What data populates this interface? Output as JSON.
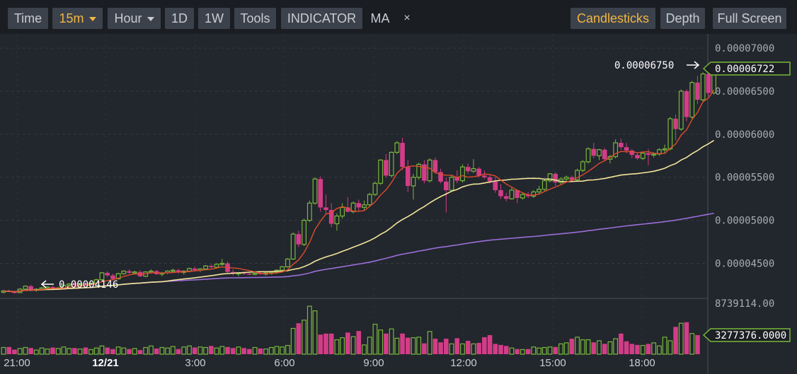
{
  "toolbar": {
    "time": "Time",
    "interval": "15m",
    "hour": "Hour",
    "d1": "1D",
    "w1": "1W",
    "tools": "Tools",
    "indicator": "INDICATOR",
    "ma": "MA",
    "close": "×",
    "candlesticks": "Candlesticks",
    "depth": "Depth",
    "fullscreen": "Full Screen"
  },
  "colors": {
    "up": "#78b83a",
    "down": "#d23d87",
    "ma_short": "#e04b2c",
    "ma_mid": "#f3e59a",
    "ma_long": "#9a6fd8",
    "accent": "#f0b542"
  },
  "chart_data": {
    "type": "candlestick",
    "price_ticks": [
      "0.00007000",
      "0.00006500",
      "0.00006000",
      "0.00005500",
      "0.00005000",
      "0.00004500"
    ],
    "price_range": [
      4.11e-05,
      7.05e-05
    ],
    "volume_ticks": [
      "8739114.00"
    ],
    "volume_range": [
      0,
      8739114
    ],
    "time_ticks": [
      "21:00",
      "12/21",
      "3:00",
      "6:00",
      "9:00",
      "12:00",
      "15:00",
      "18:00"
    ],
    "annotations": {
      "high": "0.00006750",
      "low": "0.00004146",
      "last_price": "0.00006722",
      "last_volume": "3277376.0000"
    },
    "candles": [
      [
        4165,
        4190,
        4150,
        4180
      ],
      [
        4180,
        4195,
        4165,
        4170
      ],
      [
        4170,
        4180,
        4146,
        4160
      ],
      [
        4160,
        4215,
        4155,
        4200
      ],
      [
        4200,
        4245,
        4190,
        4235
      ],
      [
        4235,
        4250,
        4180,
        4190
      ],
      [
        4190,
        4210,
        4170,
        4200
      ],
      [
        4200,
        4225,
        4190,
        4215
      ],
      [
        4215,
        4235,
        4200,
        4225
      ],
      [
        4225,
        4240,
        4195,
        4205
      ],
      [
        4205,
        4225,
        4190,
        4215
      ],
      [
        4215,
        4255,
        4205,
        4245
      ],
      [
        4245,
        4270,
        4230,
        4260
      ],
      [
        4260,
        4280,
        4240,
        4250
      ],
      [
        4250,
        4270,
        4235,
        4265
      ],
      [
        4265,
        4285,
        4245,
        4255
      ],
      [
        4255,
        4275,
        4240,
        4270
      ],
      [
        4270,
        4320,
        4260,
        4310
      ],
      [
        4310,
        4400,
        4300,
        4390
      ],
      [
        4390,
        4410,
        4340,
        4360
      ],
      [
        4360,
        4380,
        4300,
        4320
      ],
      [
        4320,
        4390,
        4310,
        4380
      ],
      [
        4380,
        4420,
        4370,
        4410
      ],
      [
        4410,
        4430,
        4380,
        4390
      ],
      [
        4390,
        4415,
        4370,
        4400
      ],
      [
        4400,
        4420,
        4340,
        4350
      ],
      [
        4350,
        4410,
        4340,
        4400
      ],
      [
        4400,
        4430,
        4380,
        4410
      ],
      [
        4410,
        4425,
        4365,
        4375
      ],
      [
        4375,
        4400,
        4350,
        4390
      ],
      [
        4390,
        4420,
        4375,
        4410
      ],
      [
        4410,
        4440,
        4390,
        4420
      ],
      [
        4420,
        4440,
        4380,
        4395
      ],
      [
        4395,
        4420,
        4370,
        4410
      ],
      [
        4410,
        4450,
        4395,
        4440
      ],
      [
        4440,
        4460,
        4410,
        4420
      ],
      [
        4420,
        4445,
        4400,
        4435
      ],
      [
        4435,
        4480,
        4420,
        4470
      ],
      [
        4470,
        4490,
        4440,
        4455
      ],
      [
        4455,
        4500,
        4440,
        4490
      ],
      [
        4490,
        4550,
        4470,
        4500
      ],
      [
        4500,
        4520,
        4380,
        4400
      ],
      [
        4400,
        4430,
        4360,
        4380
      ],
      [
        4380,
        4400,
        4350,
        4390
      ],
      [
        4390,
        4405,
        4370,
        4380
      ],
      [
        4380,
        4400,
        4365,
        4375
      ],
      [
        4375,
        4395,
        4360,
        4385
      ],
      [
        4385,
        4400,
        4370,
        4375
      ],
      [
        4375,
        4395,
        4360,
        4390
      ],
      [
        4390,
        4410,
        4370,
        4395
      ],
      [
        4395,
        4430,
        4380,
        4420
      ],
      [
        4420,
        4470,
        4410,
        4460
      ],
      [
        4460,
        4560,
        4450,
        4550
      ],
      [
        4550,
        4860,
        4540,
        4840
      ],
      [
        4840,
        4880,
        4690,
        4720
      ],
      [
        4720,
        5020,
        4700,
        5000
      ],
      [
        5000,
        5230,
        4980,
        5200
      ],
      [
        5200,
        5500,
        5180,
        5480
      ],
      [
        5480,
        5510,
        5100,
        5150
      ],
      [
        5150,
        5300,
        5080,
        5120
      ],
      [
        5120,
        5200,
        4920,
        4960
      ],
      [
        4960,
        5080,
        4880,
        5050
      ],
      [
        5050,
        5200,
        5020,
        5150
      ],
      [
        5150,
        5270,
        5090,
        5100
      ],
      [
        5100,
        5220,
        5080,
        5200
      ],
      [
        5200,
        5240,
        5110,
        5150
      ],
      [
        5150,
        5230,
        5120,
        5180
      ],
      [
        5180,
        5320,
        5160,
        5300
      ],
      [
        5300,
        5450,
        5280,
        5430
      ],
      [
        5430,
        5710,
        5410,
        5700
      ],
      [
        5700,
        5770,
        5500,
        5520
      ],
      [
        5520,
        5800,
        5500,
        5790
      ],
      [
        5790,
        5920,
        5770,
        5900
      ],
      [
        5900,
        5960,
        5580,
        5620
      ],
      [
        5620,
        5700,
        5330,
        5400
      ],
      [
        5400,
        5540,
        5240,
        5500
      ],
      [
        5500,
        5670,
        5470,
        5650
      ],
      [
        5650,
        5700,
        5430,
        5460
      ],
      [
        5460,
        5720,
        5440,
        5700
      ],
      [
        5700,
        5730,
        5540,
        5560
      ],
      [
        5560,
        5600,
        5430,
        5450
      ],
      [
        5450,
        5500,
        5090,
        5350
      ],
      [
        5350,
        5520,
        5330,
        5500
      ],
      [
        5500,
        5580,
        5430,
        5460
      ],
      [
        5460,
        5650,
        5440,
        5620
      ],
      [
        5620,
        5660,
        5540,
        5570
      ],
      [
        5570,
        5710,
        5550,
        5600
      ],
      [
        5600,
        5620,
        5500,
        5520
      ],
      [
        5520,
        5580,
        5480,
        5500
      ],
      [
        5500,
        5540,
        5430,
        5450
      ],
      [
        5450,
        5500,
        5320,
        5350
      ],
      [
        5350,
        5420,
        5250,
        5280
      ],
      [
        5280,
        5320,
        5220,
        5250
      ],
      [
        5250,
        5380,
        5240,
        5350
      ],
      [
        5350,
        5360,
        5200,
        5260
      ],
      [
        5260,
        5320,
        5240,
        5300
      ],
      [
        5300,
        5330,
        5260,
        5280
      ],
      [
        5280,
        5350,
        5260,
        5330
      ],
      [
        5330,
        5400,
        5310,
        5360
      ],
      [
        5360,
        5480,
        5340,
        5460
      ],
      [
        5460,
        5550,
        5440,
        5540
      ],
      [
        5540,
        5560,
        5400,
        5440
      ],
      [
        5440,
        5500,
        5420,
        5480
      ],
      [
        5480,
        5520,
        5440,
        5500
      ],
      [
        5500,
        5520,
        5450,
        5470
      ],
      [
        5470,
        5600,
        5460,
        5580
      ],
      [
        5580,
        5700,
        5560,
        5680
      ],
      [
        5680,
        5850,
        5660,
        5830
      ],
      [
        5830,
        5900,
        5720,
        5750
      ],
      [
        5750,
        5830,
        5700,
        5820
      ],
      [
        5820,
        5840,
        5690,
        5710
      ],
      [
        5710,
        5760,
        5660,
        5740
      ],
      [
        5740,
        5940,
        5720,
        5900
      ],
      [
        5900,
        5950,
        5820,
        5850
      ],
      [
        5850,
        5900,
        5780,
        5810
      ],
      [
        5810,
        5830,
        5720,
        5760
      ],
      [
        5760,
        5790,
        5700,
        5720
      ],
      [
        5720,
        5800,
        5700,
        5780
      ],
      [
        5780,
        5830,
        5640,
        5760
      ],
      [
        5760,
        5790,
        5730,
        5770
      ],
      [
        5770,
        5840,
        5750,
        5820
      ],
      [
        5820,
        5880,
        5780,
        5830
      ],
      [
        5830,
        6200,
        5810,
        6180
      ],
      [
        6180,
        6230,
        5930,
        6060
      ],
      [
        6060,
        6520,
        6040,
        6500
      ],
      [
        6500,
        6520,
        6150,
        6200
      ],
      [
        6200,
        6620,
        6180,
        6600
      ],
      [
        6600,
        6680,
        6350,
        6400
      ],
      [
        6400,
        6720,
        6380,
        6700
      ],
      [
        6700,
        6750,
        6440,
        6480
      ],
      [
        6480,
        6740,
        6460,
        6722
      ]
    ],
    "volumes": [
      0.13,
      0.14,
      0.09,
      0.11,
      0.13,
      0.12,
      0.08,
      0.12,
      0.1,
      0.13,
      0.11,
      0.14,
      0.11,
      0.12,
      0.1,
      0.13,
      0.09,
      0.12,
      0.16,
      0.13,
      0.1,
      0.14,
      0.12,
      0.1,
      0.11,
      0.08,
      0.13,
      0.16,
      0.11,
      0.13,
      0.12,
      0.15,
      0.1,
      0.14,
      0.16,
      0.13,
      0.14,
      0.13,
      0.16,
      0.12,
      0.15,
      0.14,
      0.12,
      0.14,
      0.12,
      0.1,
      0.13,
      0.11,
      0.1,
      0.13,
      0.15,
      0.14,
      0.17,
      0.5,
      0.6,
      0.66,
      0.93,
      0.84,
      0.38,
      0.4,
      0.4,
      0.28,
      0.32,
      0.42,
      0.34,
      0.45,
      0.18,
      0.33,
      0.58,
      0.47,
      0.4,
      0.49,
      0.31,
      0.4,
      0.32,
      0.32,
      0.33,
      0.21,
      0.44,
      0.3,
      0.23,
      0.3,
      0.2,
      0.31,
      0.2,
      0.26,
      0.2,
      0.22,
      0.33,
      0.37,
      0.2,
      0.18,
      0.16,
      0.12,
      0.1,
      0.09,
      0.1,
      0.14,
      0.12,
      0.13,
      0.14,
      0.14,
      0.2,
      0.22,
      0.3,
      0.33,
      0.28,
      0.28,
      0.23,
      0.26,
      0.2,
      0.24,
      0.3,
      0.4,
      0.25,
      0.2,
      0.18,
      0.17,
      0.2,
      0.22,
      0.16,
      0.33,
      0.26,
      0.53,
      0.6,
      0.62,
      0.4,
      0.37
    ]
  }
}
